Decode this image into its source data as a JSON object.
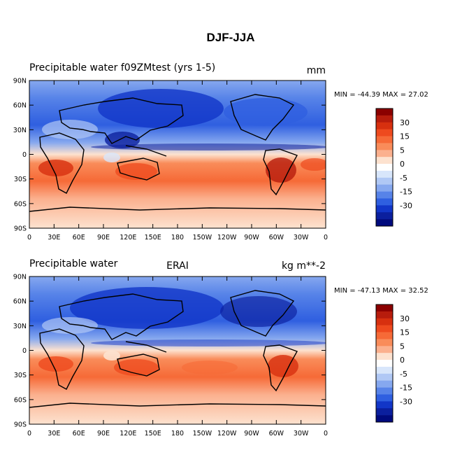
{
  "title": "DJF-JJA",
  "panels": [
    {
      "left_title": "Precipitable water  f09ZMtest (yrs 1-5)",
      "center_title": "",
      "units": "mm",
      "stats": "MIN = -44.39 MAX =  27.02"
    },
    {
      "left_title": "Precipitable water",
      "center_title": "ERAI",
      "units": "kg m**-2",
      "stats": "MIN = -47.13 MAX =  32.52"
    }
  ],
  "lat_labels": [
    "90N",
    "60N",
    "30N",
    "0",
    "30S",
    "60S",
    "90S"
  ],
  "lon_labels": [
    "0",
    "30E",
    "60E",
    "90E",
    "120E",
    "150E",
    "180",
    "150W",
    "120W",
    "90W",
    "60W",
    "30W",
    "0"
  ],
  "colorbar": {
    "labels": [
      "30",
      "15",
      "5",
      "0",
      "-5",
      "-15",
      "-30"
    ],
    "colors": [
      "#8b0000",
      "#b71c0c",
      "#d7300f",
      "#ee4a1e",
      "#f66a37",
      "#f98c5a",
      "#fbb08e",
      "#fde2cf",
      "#ffffff",
      "#d8e6fb",
      "#b0c8f5",
      "#86a8ef",
      "#5783e8",
      "#2f5fe0",
      "#1236c8",
      "#0b1f9e",
      "#000a7d"
    ]
  }
}
